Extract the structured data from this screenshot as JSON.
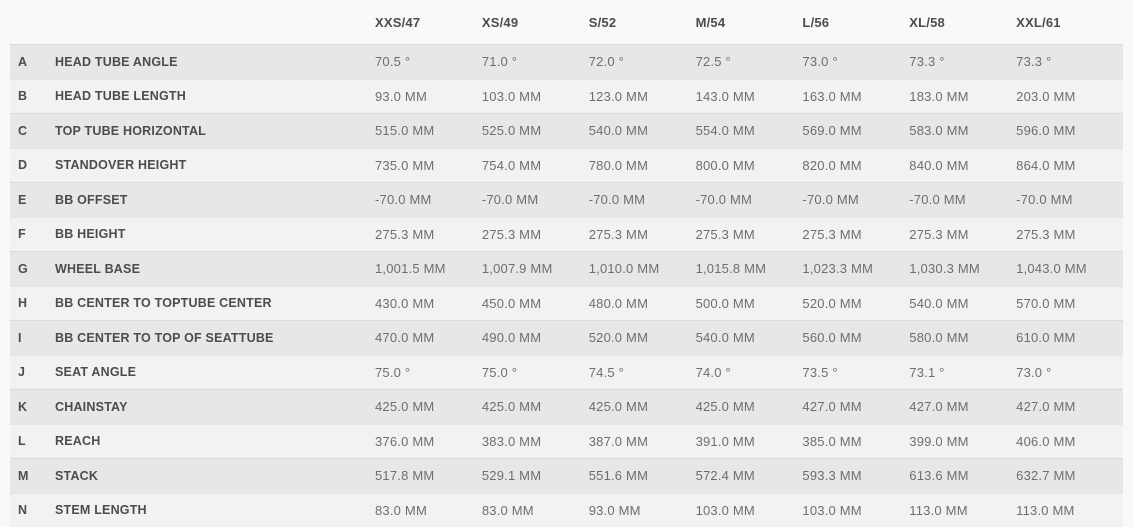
{
  "chart_data": {
    "type": "table",
    "title": "",
    "columns": [
      "XXS/47",
      "XS/49",
      "S/52",
      "M/54",
      "L/56",
      "XL/58",
      "XXL/61"
    ],
    "rows": [
      {
        "letter": "A",
        "label": "HEAD TUBE ANGLE",
        "values": [
          "70.5 °",
          "71.0 °",
          "72.0 °",
          "72.5 °",
          "73.0 °",
          "73.3 °",
          "73.3 °"
        ]
      },
      {
        "letter": "B",
        "label": "HEAD TUBE LENGTH",
        "values": [
          "93.0 MM",
          "103.0 MM",
          "123.0 MM",
          "143.0 MM",
          "163.0 MM",
          "183.0 MM",
          "203.0 MM"
        ]
      },
      {
        "letter": "C",
        "label": "TOP TUBE HORIZONTAL",
        "values": [
          "515.0 MM",
          "525.0 MM",
          "540.0 MM",
          "554.0 MM",
          "569.0 MM",
          "583.0 MM",
          "596.0 MM"
        ]
      },
      {
        "letter": "D",
        "label": "STANDOVER HEIGHT",
        "values": [
          "735.0 MM",
          "754.0 MM",
          "780.0 MM",
          "800.0 MM",
          "820.0 MM",
          "840.0 MM",
          "864.0 MM"
        ]
      },
      {
        "letter": "E",
        "label": "BB OFFSET",
        "values": [
          "-70.0 MM",
          "-70.0 MM",
          "-70.0 MM",
          "-70.0 MM",
          "-70.0 MM",
          "-70.0 MM",
          "-70.0 MM"
        ]
      },
      {
        "letter": "F",
        "label": "BB HEIGHT",
        "values": [
          "275.3 MM",
          "275.3 MM",
          "275.3 MM",
          "275.3 MM",
          "275.3 MM",
          "275.3 MM",
          "275.3 MM"
        ]
      },
      {
        "letter": "G",
        "label": "WHEEL BASE",
        "values": [
          "1,001.5 MM",
          "1,007.9 MM",
          "1,010.0 MM",
          "1,015.8 MM",
          "1,023.3 MM",
          "1,030.3 MM",
          "1,043.0 MM"
        ]
      },
      {
        "letter": "H",
        "label": "BB CENTER TO TOPTUBE CENTER",
        "values": [
          "430.0 MM",
          "450.0 MM",
          "480.0 MM",
          "500.0 MM",
          "520.0 MM",
          "540.0 MM",
          "570.0 MM"
        ]
      },
      {
        "letter": "I",
        "label": "BB CENTER TO TOP OF SEATTUBE",
        "values": [
          "470.0 MM",
          "490.0 MM",
          "520.0 MM",
          "540.0 MM",
          "560.0 MM",
          "580.0 MM",
          "610.0 MM"
        ]
      },
      {
        "letter": "J",
        "label": "SEAT ANGLE",
        "values": [
          "75.0 °",
          "75.0 °",
          "74.5 °",
          "74.0 °",
          "73.5 °",
          "73.1 °",
          "73.0 °"
        ]
      },
      {
        "letter": "K",
        "label": "CHAINSTAY",
        "values": [
          "425.0 MM",
          "425.0 MM",
          "425.0 MM",
          "425.0 MM",
          "427.0 MM",
          "427.0 MM",
          "427.0 MM"
        ]
      },
      {
        "letter": "L",
        "label": "REACH",
        "values": [
          "376.0 MM",
          "383.0 MM",
          "387.0 MM",
          "391.0 MM",
          "385.0 MM",
          "399.0 MM",
          "406.0 MM"
        ]
      },
      {
        "letter": "M",
        "label": "STACK",
        "values": [
          "517.8 MM",
          "529.1 MM",
          "551.6 MM",
          "572.4 MM",
          "593.3 MM",
          "613.6 MM",
          "632.7 MM"
        ]
      },
      {
        "letter": "N",
        "label": "STEM LENGTH",
        "values": [
          "83.0 MM",
          "83.0 MM",
          "93.0 MM",
          "103.0 MM",
          "103.0 MM",
          "113.0 MM",
          "113.0 MM"
        ]
      }
    ],
    "layout": {
      "striped": true,
      "legend": "none",
      "grid": "off"
    }
  },
  "colors": {
    "row_odd_bg": "#e7e7e7",
    "row_even_bg": "#f2f2f2",
    "page_bg": "#f9f9f9",
    "label_text": "#4c4c4c",
    "value_text": "#6e6e6e"
  }
}
